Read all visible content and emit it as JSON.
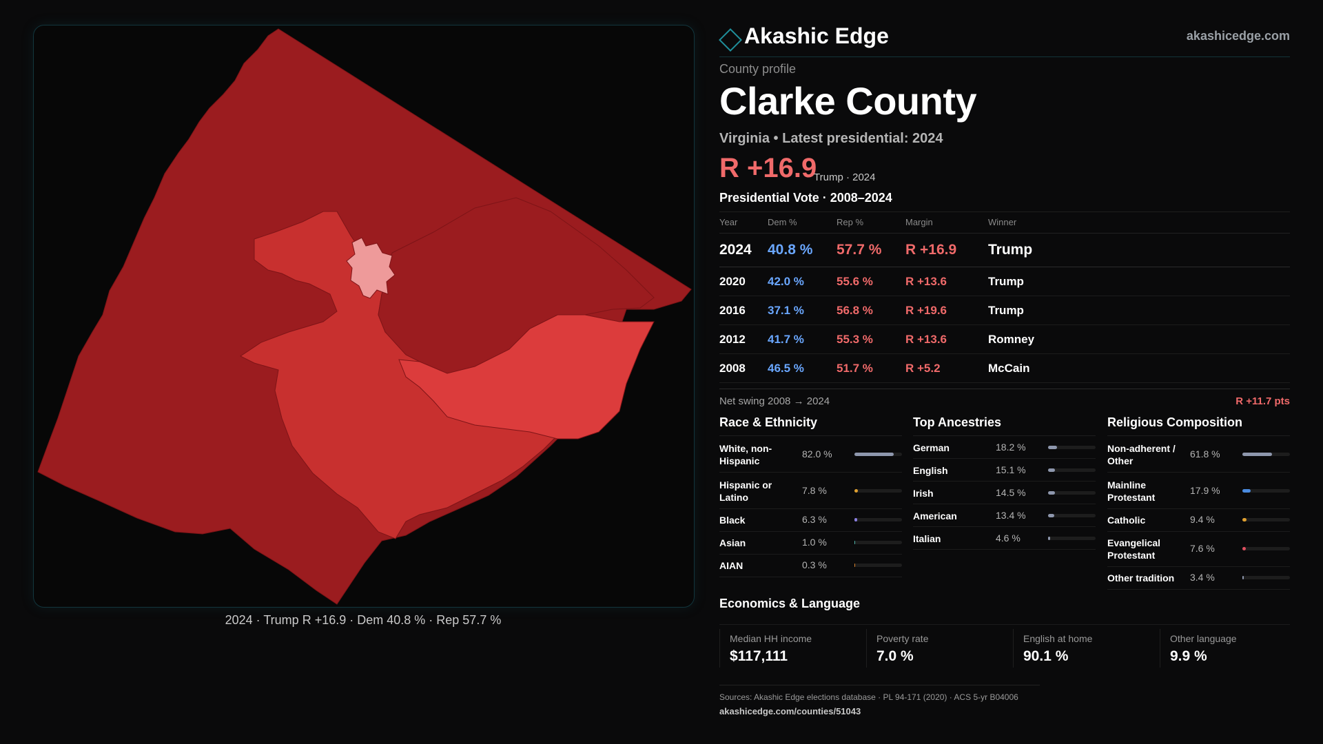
{
  "brand": {
    "name": "Akashic Edge",
    "site": "akashicedge.com",
    "icon": "diamond-outline-icon",
    "accent": "#1f8f9b"
  },
  "profile": {
    "eyebrow": "County profile",
    "county": "Clarke County",
    "subtitle": "Virginia • Latest presidential: 2024",
    "margin": "R +16.9",
    "margin_note": "Trump · 2024"
  },
  "map": {
    "caption": "2024 · Trump R +16.9 · Dem 40.8 % · Rep 57.7 %",
    "colors": {
      "dark": "#9b1c1f",
      "mid": "#c8302f",
      "light": "#dc3c3c",
      "town": "#ee9a9a"
    }
  },
  "vote": {
    "title": "Presidential Vote · 2008–2024",
    "headers": {
      "year": "Year",
      "dem": "Dem %",
      "rep": "Rep %",
      "margin": "Margin",
      "winner": "Winner"
    },
    "rows": [
      {
        "year": "2024",
        "dem": "40.8 %",
        "rep": "57.7 %",
        "margin": "R +16.9",
        "winner": "Trump"
      },
      {
        "year": "2020",
        "dem": "42.0 %",
        "rep": "55.6 %",
        "margin": "R +13.6",
        "winner": "Trump"
      },
      {
        "year": "2016",
        "dem": "37.1 %",
        "rep": "56.8 %",
        "margin": "R +19.6",
        "winner": "Trump"
      },
      {
        "year": "2012",
        "dem": "41.7 %",
        "rep": "55.3 %",
        "margin": "R +13.6",
        "winner": "Romney"
      },
      {
        "year": "2008",
        "dem": "46.5 %",
        "rep": "51.7 %",
        "margin": "R +5.2",
        "winner": "McCain"
      }
    ],
    "swing_label": "Net swing 2008 → 2024",
    "swing_value": "R +11.7 pts",
    "colors": {
      "dem": "#6aa7ff",
      "rep": "#f06a6a"
    }
  },
  "race": {
    "title": "Race & Ethnicity",
    "items": [
      {
        "label": "White, non-Hispanic",
        "value": "82.0 %",
        "pct": 82.0,
        "color": "#8e97ad"
      },
      {
        "label": "Hispanic or Latino",
        "value": "7.8 %",
        "pct": 7.8,
        "color": "#e0a030"
      },
      {
        "label": "Black",
        "value": "6.3 %",
        "pct": 6.3,
        "color": "#8a7fe0"
      },
      {
        "label": "Asian",
        "value": "1.0 %",
        "pct": 1.0,
        "color": "#4fb3a8"
      },
      {
        "label": "AIAN",
        "value": "0.3 %",
        "pct": 0.3,
        "color": "#d9822b"
      }
    ]
  },
  "ancestry": {
    "title": "Top Ancestries",
    "items": [
      {
        "label": "German",
        "value": "18.2 %",
        "pct": 18.2,
        "color": "#8e97ad"
      },
      {
        "label": "English",
        "value": "15.1 %",
        "pct": 15.1,
        "color": "#8e97ad"
      },
      {
        "label": "Irish",
        "value": "14.5 %",
        "pct": 14.5,
        "color": "#8e97ad"
      },
      {
        "label": "American",
        "value": "13.4 %",
        "pct": 13.4,
        "color": "#8e97ad"
      },
      {
        "label": "Italian",
        "value": "4.6 %",
        "pct": 4.6,
        "color": "#8e97ad"
      }
    ]
  },
  "religion": {
    "title": "Religious Composition",
    "items": [
      {
        "label": "Non-adherent / Other",
        "value": "61.8 %",
        "pct": 61.8,
        "color": "#8e97ad"
      },
      {
        "label": "Mainline Protestant",
        "value": "17.9 %",
        "pct": 17.9,
        "color": "#4a8be0"
      },
      {
        "label": "Catholic",
        "value": "9.4 %",
        "pct": 9.4,
        "color": "#e0a030"
      },
      {
        "label": "Evangelical Protestant",
        "value": "7.6 %",
        "pct": 7.6,
        "color": "#e05060"
      },
      {
        "label": "Other tradition",
        "value": "3.4 %",
        "pct": 3.4,
        "color": "#8e97ad"
      }
    ]
  },
  "economics": {
    "title": "Economics & Language",
    "cards": [
      {
        "label": "Median HH income",
        "value": "$117,111"
      },
      {
        "label": "Poverty rate",
        "value": "7.0 %"
      },
      {
        "label": "English at home",
        "value": "90.1 %"
      },
      {
        "label": "Other language",
        "value": "9.9 %"
      }
    ]
  },
  "sources": {
    "line": "Sources: Akashic Edge elections database · PL 94-171 (2020) · ACS 5-yr B04006",
    "url": "akashicedge.com/counties/51043"
  }
}
